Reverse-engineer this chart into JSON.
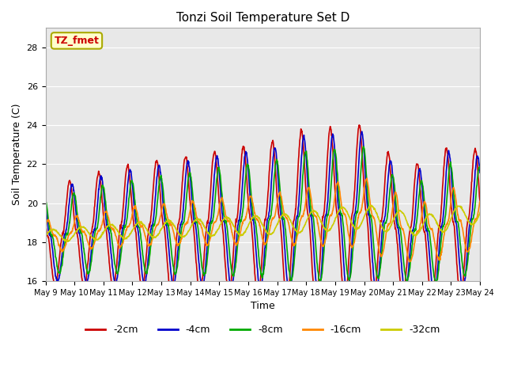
{
  "title": "Tonzi Soil Temperature Set D",
  "xlabel": "Time",
  "ylabel": "Soil Temperature (C)",
  "ylim": [
    16,
    29
  ],
  "yticks": [
    16,
    18,
    20,
    22,
    24,
    26,
    28
  ],
  "xlim": [
    9,
    24
  ],
  "series_labels": [
    "-2cm",
    "-4cm",
    "-8cm",
    "-16cm",
    "-32cm"
  ],
  "series_colors": [
    "#cc0000",
    "#0000cc",
    "#00aa00",
    "#ff8800",
    "#cccc00"
  ],
  "series_linewidths": [
    1.2,
    1.2,
    1.2,
    1.2,
    1.2
  ],
  "bg_color": "#e8e8e8",
  "legend_label": "TZ_fmet",
  "legend_bg": "#ffffcc",
  "legend_edge": "#aaaa00",
  "legend_text_color": "#cc0000",
  "grid_color": "#ffffff"
}
